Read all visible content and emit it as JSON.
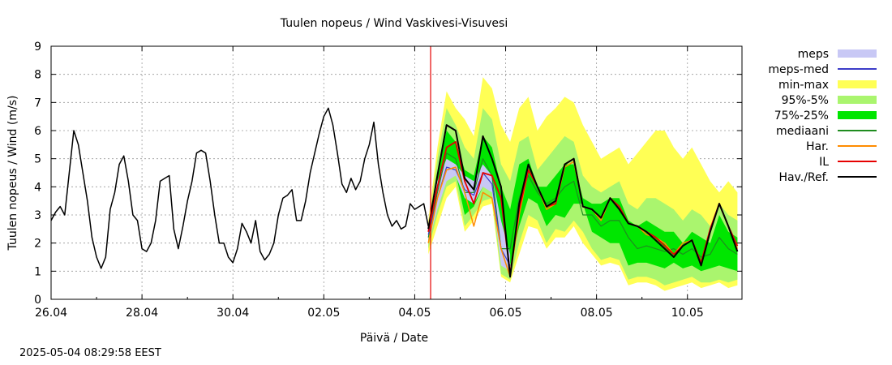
{
  "chart_data": {
    "type": "line",
    "title": "Tuulen nopeus / Wind  Vaskivesi-Visuvesi",
    "xlabel": "Päivä / Date",
    "ylabel": "Tuulen nopeus / Wind (m/s)",
    "ylim": [
      0,
      9
    ],
    "xlim_days": [
      0,
      15.2
    ],
    "y_ticks": [
      "0",
      "1",
      "2",
      "3",
      "4",
      "5",
      "6",
      "7",
      "8",
      "9"
    ],
    "x_ticks": [
      {
        "day": 0,
        "label": "26.04"
      },
      {
        "day": 2,
        "label": "28.04"
      },
      {
        "day": 4,
        "label": "30.04"
      },
      {
        "day": 6,
        "label": "02.05"
      },
      {
        "day": 8,
        "label": "04.05"
      },
      {
        "day": 10,
        "label": "06.05"
      },
      {
        "day": 12,
        "label": "08.05"
      },
      {
        "day": 14,
        "label": "10.05"
      }
    ],
    "grid": true,
    "now_marker_day": 8.35,
    "legend": [
      {
        "key": "meps",
        "label": "meps",
        "color": "#c8c8f5",
        "kind": "band"
      },
      {
        "key": "meps_med",
        "label": "meps-med",
        "color": "#3c3cc8",
        "kind": "line"
      },
      {
        "key": "minmax",
        "label": "min-max",
        "color": "#ffff55",
        "kind": "band"
      },
      {
        "key": "p95_5",
        "label": "95%-5%",
        "color": "#aaf56e",
        "kind": "band"
      },
      {
        "key": "p75_25",
        "label": "75%-25%",
        "color": "#00e600",
        "kind": "band"
      },
      {
        "key": "mediaani",
        "label": "mediaani",
        "color": "#1f8c1f",
        "kind": "line"
      },
      {
        "key": "har",
        "label": "Har.",
        "color": "#ff8c00",
        "kind": "line"
      },
      {
        "key": "il",
        "label": "IL",
        "color": "#e60000",
        "kind": "line"
      },
      {
        "key": "hav",
        "label": "Hav./Ref.",
        "color": "#000000",
        "kind": "line"
      }
    ],
    "observed": {
      "x": [
        0,
        0.1,
        0.2,
        0.3,
        0.4,
        0.5,
        0.6,
        0.7,
        0.8,
        0.9,
        1.0,
        1.1,
        1.2,
        1.3,
        1.4,
        1.5,
        1.6,
        1.7,
        1.8,
        1.9,
        2.0,
        2.1,
        2.2,
        2.3,
        2.4,
        2.5,
        2.6,
        2.7,
        2.8,
        2.9,
        3.0,
        3.1,
        3.2,
        3.3,
        3.4,
        3.5,
        3.6,
        3.7,
        3.8,
        3.9,
        4.0,
        4.1,
        4.2,
        4.3,
        4.4,
        4.5,
        4.6,
        4.7,
        4.8,
        4.9,
        5.0,
        5.1,
        5.2,
        5.3,
        5.4,
        5.5,
        5.6,
        5.7,
        5.8,
        5.9,
        6.0,
        6.1,
        6.2,
        6.3,
        6.4,
        6.5,
        6.6,
        6.7,
        6.8,
        6.9,
        7.0,
        7.1,
        7.2,
        7.3,
        7.4,
        7.5,
        7.6,
        7.7,
        7.8,
        7.9,
        8.0,
        8.1,
        8.2,
        8.3
      ],
      "y": [
        2.8,
        3.1,
        3.3,
        3.0,
        4.5,
        6.0,
        5.5,
        4.5,
        3.5,
        2.2,
        1.5,
        1.1,
        1.5,
        3.2,
        3.8,
        4.8,
        5.1,
        4.2,
        3.0,
        2.8,
        1.8,
        1.7,
        2.0,
        2.8,
        4.2,
        4.3,
        4.4,
        2.5,
        1.8,
        2.6,
        3.5,
        4.2,
        5.2,
        5.3,
        5.2,
        4.2,
        3.0,
        2.0,
        2.0,
        1.5,
        1.3,
        1.8,
        2.7,
        2.4,
        2.0,
        2.8,
        1.7,
        1.4,
        1.6,
        2.0,
        3.0,
        3.6,
        3.7,
        3.9,
        2.8,
        2.8,
        3.5,
        4.5,
        5.2,
        5.9,
        6.5,
        6.8,
        6.2,
        5.2,
        4.1,
        3.8,
        4.3,
        3.9,
        4.2,
        5.0,
        5.5,
        6.3,
        4.8,
        3.8,
        3.0,
        2.6,
        2.8,
        2.5,
        2.6,
        3.4,
        3.2,
        3.3,
        3.4,
        2.6
      ]
    },
    "forecast_x": [
      8.3,
      8.5,
      8.7,
      8.9,
      9.1,
      9.3,
      9.5,
      9.7,
      9.9,
      10.1,
      10.3,
      10.5,
      10.7,
      10.9,
      11.1,
      11.3,
      11.5,
      11.7,
      11.9,
      12.1,
      12.3,
      12.5,
      12.7,
      12.9,
      13.1,
      13.3,
      13.5,
      13.7,
      13.9,
      14.1,
      14.3,
      14.5,
      14.7,
      14.9,
      15.1
    ],
    "minmax": {
      "low": [
        1.6,
        2.6,
        3.6,
        4.0,
        2.4,
        2.8,
        3.3,
        3.4,
        0.8,
        0.6,
        1.6,
        2.6,
        2.5,
        1.8,
        2.2,
        2.2,
        2.6,
        2.0,
        1.6,
        1.2,
        1.3,
        1.2,
        0.5,
        0.6,
        0.6,
        0.5,
        0.3,
        0.4,
        0.5,
        0.6,
        0.4,
        0.5,
        0.6,
        0.4,
        0.5
      ],
      "high": [
        2.8,
        5.4,
        7.4,
        6.8,
        6.4,
        5.8,
        7.9,
        7.5,
        6.2,
        5.6,
        6.8,
        7.2,
        6.0,
        6.5,
        6.8,
        7.2,
        7.0,
        6.2,
        5.6,
        5.0,
        5.2,
        5.4,
        4.8,
        5.2,
        5.6,
        6.0,
        6.0,
        5.4,
        5.0,
        5.4,
        4.8,
        4.2,
        3.8,
        4.2,
        3.8
      ]
    },
    "p95_5": {
      "low": [
        1.8,
        3.0,
        4.0,
        4.2,
        2.6,
        3.0,
        3.5,
        3.6,
        0.9,
        0.7,
        2.0,
        3.0,
        2.8,
        2.0,
        2.5,
        2.4,
        2.8,
        2.4,
        1.8,
        1.4,
        1.5,
        1.4,
        0.7,
        0.8,
        0.8,
        0.7,
        0.5,
        0.6,
        0.7,
        0.8,
        0.6,
        0.6,
        0.7,
        0.6,
        0.7
      ],
      "high": [
        2.6,
        5.0,
        6.8,
        6.2,
        5.4,
        5.0,
        6.8,
        6.4,
        4.8,
        4.2,
        5.6,
        5.8,
        4.6,
        5.0,
        5.4,
        5.8,
        5.6,
        4.4,
        4.0,
        3.8,
        4.0,
        4.2,
        3.4,
        3.2,
        3.6,
        3.6,
        3.4,
        3.2,
        2.8,
        3.2,
        3.0,
        2.6,
        3.4,
        3.0,
        2.8
      ]
    },
    "p75_25": {
      "low": [
        2.0,
        3.4,
        4.6,
        4.5,
        3.0,
        3.3,
        4.0,
        4.0,
        1.4,
        1.2,
        2.6,
        3.6,
        3.4,
        2.6,
        3.0,
        2.9,
        3.4,
        3.4,
        2.4,
        2.2,
        2.0,
        2.0,
        1.2,
        1.3,
        1.3,
        1.2,
        1.1,
        1.3,
        1.1,
        1.2,
        1.0,
        1.1,
        1.2,
        1.1,
        1.0
      ],
      "high": [
        2.4,
        4.4,
        6.0,
        5.6,
        4.6,
        4.4,
        5.8,
        5.4,
        4.0,
        3.2,
        4.8,
        5.0,
        4.0,
        4.0,
        4.4,
        4.8,
        4.8,
        3.6,
        3.4,
        3.4,
        3.6,
        3.6,
        2.8,
        2.6,
        2.8,
        2.6,
        2.4,
        2.4,
        2.0,
        2.4,
        2.2,
        2.0,
        3.0,
        2.4,
        2.2
      ]
    },
    "meps": {
      "low": [
        2.0,
        3.2,
        4.2,
        4.4,
        3.6,
        3.4,
        4.0,
        3.8,
        1.2,
        1.0
      ],
      "high": [
        2.6,
        4.2,
        5.0,
        4.8,
        4.4,
        4.2,
        4.8,
        4.4,
        2.8,
        1.6
      ]
    },
    "mediaani": [
      2.2,
      3.8,
      5.2,
      5.0,
      3.8,
      3.8,
      5.0,
      4.4,
      1.8,
      1.8,
      3.6,
      4.4,
      3.8,
      3.4,
      3.6,
      4.0,
      4.2,
      3.0,
      3.0,
      2.6,
      2.8,
      2.8,
      2.2,
      1.8,
      1.9,
      1.8,
      1.7,
      1.8,
      1.6,
      1.8,
      1.5,
      1.6,
      2.2,
      1.8,
      1.6
    ],
    "meps_med": [
      2.3,
      3.6,
      4.7,
      4.6,
      3.9,
      3.7,
      4.5,
      4.1,
      1.8,
      1.2
    ],
    "har": [
      2.0,
      3.6,
      4.6,
      4.7,
      3.8,
      2.6,
      3.8,
      3.6,
      1.8,
      0.8,
      3.0,
      4.6,
      4.0,
      3.2,
      3.4,
      4.7,
      4.9,
      3.3,
      3.2,
      2.8,
      3.6,
      3.2,
      2.7,
      2.6,
      2.3,
      2.2,
      2.0,
      1.6,
      2.0,
      2.1,
      1.2,
      2.4,
      3.4,
      2.6,
      1.8
    ],
    "il": [
      2.4,
      4.0,
      5.4,
      5.6,
      4.2,
      3.4,
      4.5,
      4.4,
      3.6,
      0.9,
      3.2,
      4.6,
      4.0,
      3.3,
      3.4,
      4.8,
      5.0,
      3.3,
      3.2,
      2.9,
      3.6,
      3.3,
      2.7,
      2.6,
      2.4,
      2.2,
      1.9,
      1.6,
      1.9,
      2.1,
      1.3,
      2.5,
      3.4,
      2.6,
      1.9
    ],
    "hav": [
      2.5,
      4.4,
      6.2,
      6.0,
      4.3,
      3.9,
      5.8,
      5.0,
      4.0,
      0.8,
      3.4,
      4.8,
      4.0,
      3.3,
      3.5,
      4.8,
      5.0,
      3.3,
      3.2,
      2.9,
      3.6,
      3.2,
      2.7,
      2.6,
      2.4,
      2.1,
      1.8,
      1.5,
      1.9,
      2.1,
      1.2,
      2.4,
      3.4,
      2.6,
      1.7
    ]
  },
  "footer": {
    "timestamp": "2025-05-04  08:29:58 EEST"
  }
}
